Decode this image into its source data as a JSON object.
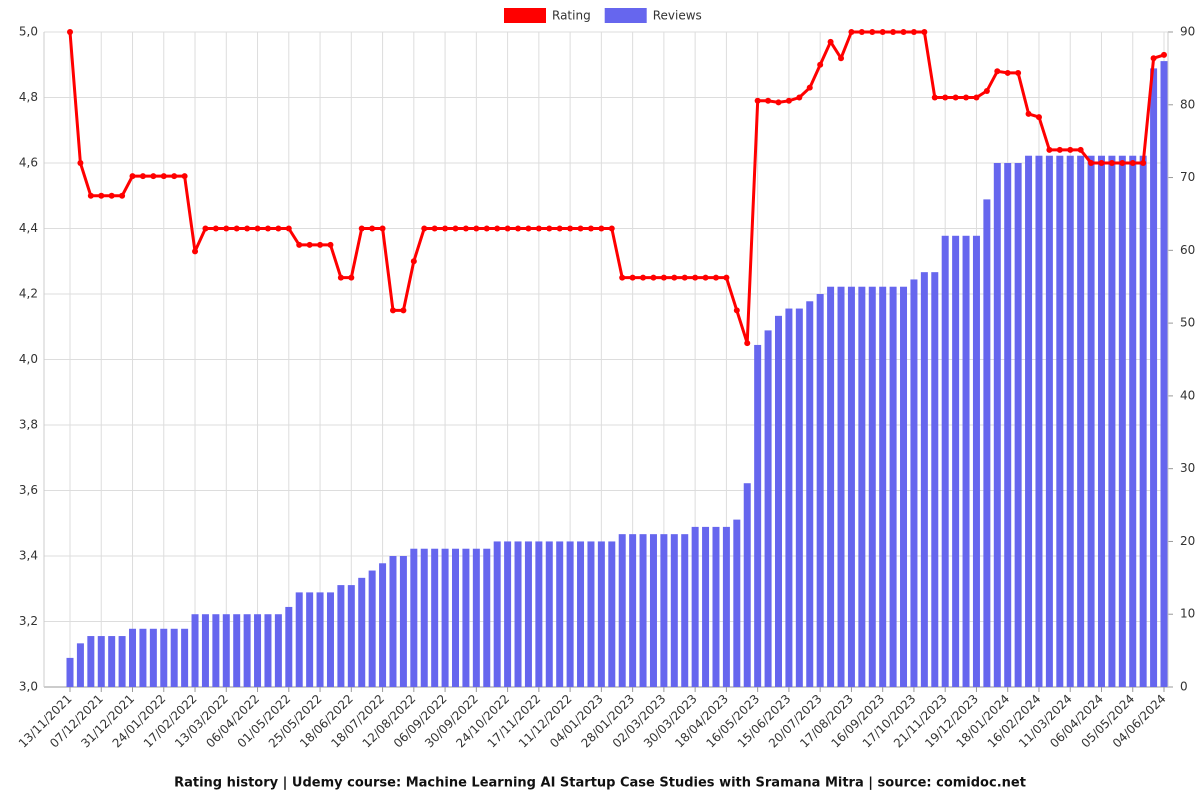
{
  "chart_data": {
    "type": "combo",
    "title": "Rating history | Udemy course: Machine Learning AI Startup Case Studies with Sramana Mitra | source: comidoc.net",
    "categories": [
      "13/11/2021",
      null,
      null,
      "07/12/2021",
      null,
      null,
      "31/12/2021",
      null,
      null,
      "24/01/2022",
      null,
      null,
      "17/02/2022",
      null,
      null,
      "13/03/2022",
      null,
      null,
      "06/04/2022",
      null,
      null,
      "01/05/2022",
      null,
      null,
      "25/05/2022",
      null,
      null,
      "18/06/2022",
      null,
      null,
      "18/07/2022",
      null,
      null,
      "12/08/2022",
      null,
      null,
      "06/09/2022",
      null,
      null,
      "30/09/2022",
      null,
      null,
      "24/10/2022",
      null,
      null,
      "17/11/2022",
      null,
      null,
      "11/12/2022",
      null,
      null,
      "04/01/2023",
      null,
      null,
      "28/01/2023",
      null,
      null,
      "02/03/2023",
      null,
      null,
      "30/03/2023",
      null,
      null,
      "18/04/2023",
      null,
      null,
      "16/05/2023",
      null,
      null,
      "15/06/2023",
      null,
      null,
      "20/07/2023",
      null,
      null,
      "17/08/2023",
      null,
      null,
      "16/09/2023",
      null,
      null,
      "17/10/2023",
      null,
      null,
      "21/11/2023",
      null,
      null,
      "19/12/2023",
      null,
      null,
      "18/01/2024",
      null,
      null,
      "16/02/2024",
      null,
      null,
      "11/03/2024",
      null,
      null,
      "06/04/2024",
      null,
      null,
      "05/05/2024",
      null,
      null,
      "04/06/2024"
    ],
    "series": [
      {
        "name": "Rating",
        "type": "line",
        "color": "#ff0000",
        "axis": "y",
        "values": [
          5.0,
          4.6,
          4.5,
          4.5,
          4.5,
          4.5,
          4.56,
          4.56,
          4.56,
          4.56,
          4.56,
          4.56,
          4.33,
          4.4,
          4.4,
          4.4,
          4.4,
          4.4,
          4.4,
          4.4,
          4.4,
          4.4,
          4.35,
          4.35,
          4.35,
          4.35,
          4.25,
          4.25,
          4.4,
          4.4,
          4.4,
          4.15,
          4.15,
          4.3,
          4.4,
          4.4,
          4.4,
          4.4,
          4.4,
          4.4,
          4.4,
          4.4,
          4.4,
          4.4,
          4.4,
          4.4,
          4.4,
          4.4,
          4.4,
          4.4,
          4.4,
          4.4,
          4.4,
          4.25,
          4.25,
          4.25,
          4.25,
          4.25,
          4.25,
          4.25,
          4.25,
          4.25,
          4.25,
          4.25,
          4.15,
          4.05,
          4.79,
          4.79,
          4.785,
          4.79,
          4.8,
          4.83,
          4.9,
          4.97,
          4.92,
          5.0,
          5.0,
          5.0,
          5.0,
          5.0,
          5.0,
          5.0,
          5.0,
          4.8,
          4.8,
          4.8,
          4.8,
          4.8,
          4.82,
          4.88,
          4.875,
          4.875,
          4.75,
          4.74,
          4.64,
          4.64,
          4.64,
          4.64,
          4.6,
          4.6,
          4.6,
          4.6,
          4.6,
          4.6,
          4.92,
          4.93
        ]
      },
      {
        "name": "Reviews",
        "type": "bar",
        "color": "#6666ee",
        "axis": "y2",
        "values": [
          4,
          6,
          7,
          7,
          7,
          7,
          8,
          8,
          8,
          8,
          8,
          8,
          10,
          10,
          10,
          10,
          10,
          10,
          10,
          10,
          10,
          11,
          13,
          13,
          13,
          13,
          14,
          14,
          15,
          16,
          17,
          18,
          18,
          19,
          19,
          19,
          19,
          19,
          19,
          19,
          19,
          20,
          20,
          20,
          20,
          20,
          20,
          20,
          20,
          20,
          20,
          20,
          20,
          21,
          21,
          21,
          21,
          21,
          21,
          21,
          22,
          22,
          22,
          22,
          23,
          28,
          47,
          49,
          51,
          52,
          52,
          53,
          54,
          55,
          55,
          55,
          55,
          55,
          55,
          55,
          55,
          56,
          57,
          57,
          62,
          62,
          62,
          62,
          67,
          72,
          72,
          72,
          73,
          73,
          73,
          73,
          73,
          73,
          73,
          73,
          73,
          73,
          73,
          73,
          85,
          86
        ]
      }
    ],
    "ylim": [
      3.0,
      5.0
    ],
    "yticks": [
      {
        "value": 3.0,
        "label": "3,0"
      },
      {
        "value": 3.2,
        "label": "3,2"
      },
      {
        "value": 3.4,
        "label": "3,4"
      },
      {
        "value": 3.6,
        "label": "3,6"
      },
      {
        "value": 3.8,
        "label": "3,8"
      },
      {
        "value": 4.0,
        "label": "4,0"
      },
      {
        "value": 4.2,
        "label": "4,2"
      },
      {
        "value": 4.4,
        "label": "4,4"
      },
      {
        "value": 4.6,
        "label": "4,6"
      },
      {
        "value": 4.8,
        "label": "4,8"
      },
      {
        "value": 5.0,
        "label": "5,0"
      }
    ],
    "y2lim": [
      0,
      90
    ],
    "y2ticks": [
      0,
      10,
      20,
      30,
      40,
      50,
      60,
      70,
      80,
      90
    ],
    "grid": true,
    "legend": "top"
  }
}
